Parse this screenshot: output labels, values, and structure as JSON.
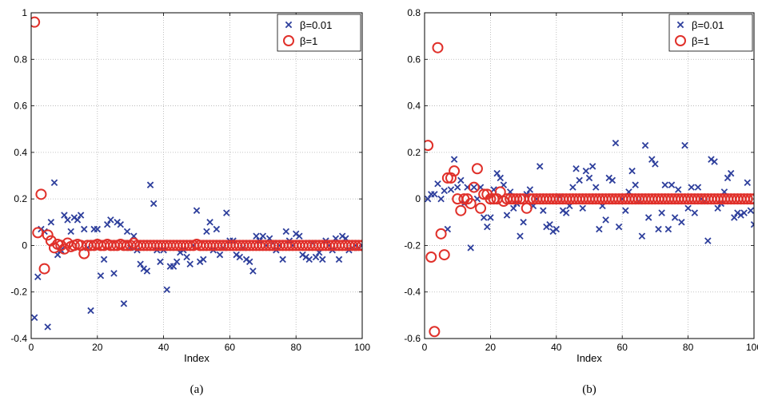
{
  "chart_data": [
    {
      "type": "scatter",
      "caption": "(a)",
      "xlabel": "Index",
      "ylabel": "",
      "xlim": [
        0,
        100
      ],
      "ylim": [
        -0.4,
        1.0
      ],
      "xticks": [
        0,
        20,
        40,
        60,
        80,
        100
      ],
      "yticks": [
        -0.4,
        -0.2,
        0,
        0.2,
        0.4,
        0.6,
        0.8,
        1
      ],
      "ytick_labels": [
        "-0.4",
        "-0.2",
        "0",
        "0.2",
        "0.4",
        "0.6",
        "0.8",
        "1"
      ],
      "grid": true,
      "legend_position": "top-right",
      "series": [
        {
          "name": "β=0.01",
          "marker": "x",
          "color": "#2e3f9c",
          "x": [
            1,
            2,
            3,
            4,
            5,
            6,
            7,
            8,
            9,
            10,
            11,
            12,
            13,
            14,
            15,
            16,
            17,
            18,
            19,
            20,
            21,
            22,
            23,
            24,
            25,
            26,
            27,
            28,
            29,
            30,
            31,
            32,
            33,
            34,
            35,
            36,
            37,
            38,
            39,
            40,
            41,
            42,
            43,
            44,
            45,
            46,
            47,
            48,
            49,
            50,
            51,
            52,
            53,
            54,
            55,
            56,
            57,
            58,
            59,
            60,
            61,
            62,
            63,
            64,
            65,
            66,
            67,
            68,
            69,
            70,
            71,
            72,
            73,
            74,
            75,
            76,
            77,
            78,
            79,
            80,
            81,
            82,
            83,
            84,
            85,
            86,
            87,
            88,
            89,
            90,
            91,
            92,
            93,
            94,
            95,
            96,
            97,
            98,
            99,
            100
          ],
          "y": [
            -0.31,
            -0.135,
            0.07,
            0.06,
            -0.35,
            0.1,
            0.27,
            -0.04,
            -0.02,
            0.13,
            0.11,
            0.06,
            0.12,
            0.11,
            0.13,
            0.07,
            -0.01,
            -0.28,
            0.07,
            0.07,
            -0.13,
            -0.06,
            0.09,
            0.11,
            -0.12,
            0.1,
            0.09,
            -0.25,
            0.06,
            -0.01,
            0.04,
            -0.02,
            -0.08,
            -0.1,
            -0.11,
            0.26,
            0.18,
            -0.02,
            -0.07,
            -0.02,
            -0.19,
            -0.09,
            -0.09,
            -0.07,
            -0.03,
            -0.02,
            -0.05,
            -0.08,
            0.0,
            0.15,
            -0.07,
            -0.06,
            0.06,
            0.1,
            -0.02,
            0.07,
            -0.04,
            -0.01,
            0.14,
            0.02,
            0.02,
            -0.04,
            -0.05,
            -0.01,
            -0.06,
            -0.07,
            -0.11,
            0.04,
            0.02,
            0.04,
            0.0,
            0.03,
            0.01,
            -0.02,
            0.0,
            -0.06,
            0.06,
            0.02,
            0.0,
            0.05,
            0.04,
            -0.04,
            -0.05,
            -0.06,
            0.01,
            -0.05,
            -0.03,
            -0.06,
            0.02,
            0.0,
            -0.02,
            0.03,
            -0.06,
            0.04,
            0.03,
            -0.02,
            -0.01,
            0.0,
            -0.01,
            0.0
          ]
        },
        {
          "name": "β=1",
          "marker": "o",
          "color": "#e0302a",
          "x": [
            1,
            2,
            3,
            4,
            5,
            6,
            7,
            8,
            9,
            10,
            11,
            12,
            13,
            14,
            15,
            16,
            17,
            18,
            19,
            20,
            21,
            22,
            23,
            24,
            25,
            26,
            27,
            28,
            29,
            30,
            31,
            32,
            33,
            34,
            35,
            36,
            37,
            38,
            39,
            40,
            41,
            42,
            43,
            44,
            45,
            46,
            47,
            48,
            49,
            50,
            51,
            52,
            53,
            54,
            55,
            56,
            57,
            58,
            59,
            60,
            61,
            62,
            63,
            64,
            65,
            66,
            67,
            68,
            69,
            70,
            71,
            72,
            73,
            74,
            75,
            76,
            77,
            78,
            79,
            80,
            81,
            82,
            83,
            84,
            85,
            86,
            87,
            88,
            89,
            90,
            91,
            92,
            93,
            94,
            95,
            96,
            97,
            98,
            99,
            100
          ],
          "y": [
            0.96,
            0.055,
            0.22,
            -0.1,
            0.045,
            0.02,
            -0.01,
            0.005,
            0.0,
            -0.015,
            0.01,
            -0.005,
            0.0,
            0.005,
            0.0,
            -0.035,
            0.0,
            0.0,
            0.0,
            0.005,
            0.0,
            0.0,
            0.005,
            0.0,
            0.0,
            0.0,
            0.005,
            0.0,
            0.0,
            0.0,
            0.01,
            0.0,
            0.0,
            0.0,
            0.0,
            0.0,
            0.0,
            0.0,
            0.0,
            0.0,
            0.0,
            0.0,
            0.0,
            0.0,
            0.0,
            0.0,
            0.0,
            0.0,
            0.0,
            0.005,
            0.0,
            0.0,
            0.0,
            0.0,
            0.0,
            0.0,
            0.0,
            0.0,
            0.0,
            0.0,
            0.0,
            0.0,
            0.0,
            0.0,
            0.0,
            0.0,
            0.0,
            0.0,
            0.0,
            0.0,
            0.0,
            0.0,
            0.0,
            0.0,
            0.0,
            0.0,
            0.0,
            0.0,
            0.0,
            0.0,
            0.0,
            0.0,
            0.0,
            0.0,
            0.0,
            0.0,
            0.0,
            0.0,
            0.0,
            0.0,
            0.0,
            0.0,
            0.0,
            0.0,
            0.0,
            0.0,
            0.0,
            0.0,
            0.0,
            0.0
          ]
        }
      ]
    },
    {
      "type": "scatter",
      "caption": "(b)",
      "xlabel": "Index",
      "ylabel": "",
      "xlim": [
        0,
        100
      ],
      "ylim": [
        -0.6,
        0.8
      ],
      "xticks": [
        0,
        20,
        40,
        60,
        80,
        100
      ],
      "yticks": [
        -0.6,
        -0.4,
        -0.2,
        0,
        0.2,
        0.4,
        0.6,
        0.8
      ],
      "ytick_labels": [
        "-0.6",
        "-0.4",
        "-0.2",
        "0",
        "0.2",
        "0.4",
        "0.6",
        "0.8"
      ],
      "grid": true,
      "legend_position": "top-right",
      "series": [
        {
          "name": "β=0.01",
          "marker": "x",
          "color": "#2e3f9c",
          "x": [
            1,
            2,
            3,
            4,
            5,
            6,
            7,
            8,
            9,
            10,
            11,
            12,
            13,
            14,
            15,
            16,
            17,
            18,
            19,
            20,
            21,
            22,
            23,
            24,
            25,
            26,
            27,
            28,
            29,
            30,
            31,
            32,
            33,
            34,
            35,
            36,
            37,
            38,
            39,
            40,
            41,
            42,
            43,
            44,
            45,
            46,
            47,
            48,
            49,
            50,
            51,
            52,
            53,
            54,
            55,
            56,
            57,
            58,
            59,
            60,
            61,
            62,
            63,
            64,
            65,
            66,
            67,
            68,
            69,
            70,
            71,
            72,
            73,
            74,
            75,
            76,
            77,
            78,
            79,
            80,
            81,
            82,
            83,
            84,
            85,
            86,
            87,
            88,
            89,
            90,
            91,
            92,
            93,
            94,
            95,
            96,
            97,
            98,
            99,
            100
          ],
          "y": [
            0.0,
            0.02,
            0.02,
            0.065,
            0.0,
            0.035,
            -0.13,
            0.04,
            0.17,
            0.05,
            0.08,
            -0.02,
            0.05,
            -0.21,
            0.05,
            0.0,
            0.05,
            -0.08,
            -0.12,
            -0.08,
            0.04,
            0.11,
            0.09,
            0.06,
            -0.07,
            0.03,
            -0.04,
            -0.02,
            -0.16,
            -0.1,
            0.02,
            0.04,
            -0.03,
            0.0,
            0.14,
            -0.05,
            -0.12,
            -0.11,
            -0.14,
            -0.13,
            0.01,
            -0.05,
            -0.06,
            -0.03,
            0.05,
            0.13,
            0.08,
            -0.04,
            0.12,
            0.09,
            0.14,
            0.05,
            -0.13,
            -0.03,
            -0.09,
            0.09,
            0.08,
            0.24,
            -0.12,
            0.0,
            -0.05,
            0.03,
            0.12,
            0.06,
            -0.01,
            -0.16,
            0.23,
            -0.08,
            0.17,
            0.15,
            -0.13,
            -0.06,
            0.06,
            -0.13,
            0.06,
            -0.08,
            0.04,
            -0.1,
            0.23,
            -0.04,
            0.05,
            -0.06,
            0.05,
            0.0,
            -0.01,
            -0.18,
            0.17,
            0.16,
            -0.04,
            -0.02,
            0.03,
            0.09,
            0.11,
            -0.08,
            -0.06,
            -0.07,
            -0.06,
            0.07,
            -0.05,
            -0.11
          ]
        },
        {
          "name": "β=1",
          "marker": "o",
          "color": "#e0302a",
          "x": [
            1,
            2,
            3,
            4,
            5,
            6,
            7,
            8,
            9,
            10,
            11,
            12,
            13,
            14,
            15,
            16,
            17,
            18,
            19,
            20,
            21,
            22,
            23,
            24,
            25,
            26,
            27,
            28,
            29,
            30,
            31,
            32,
            33,
            34,
            35,
            36,
            37,
            38,
            39,
            40,
            41,
            42,
            43,
            44,
            45,
            46,
            47,
            48,
            49,
            50,
            51,
            52,
            53,
            54,
            55,
            56,
            57,
            58,
            59,
            60,
            61,
            62,
            63,
            64,
            65,
            66,
            67,
            68,
            69,
            70,
            71,
            72,
            73,
            74,
            75,
            76,
            77,
            78,
            79,
            80,
            81,
            82,
            83,
            84,
            85,
            86,
            87,
            88,
            89,
            90,
            91,
            92,
            93,
            94,
            95,
            96,
            97,
            98,
            99,
            100
          ],
          "y": [
            0.23,
            -0.25,
            -0.57,
            0.65,
            -0.15,
            -0.24,
            0.09,
            0.09,
            0.12,
            0.0,
            -0.05,
            0.0,
            0.0,
            -0.02,
            0.05,
            0.13,
            -0.04,
            0.02,
            0.02,
            0.0,
            0.0,
            0.0,
            0.03,
            -0.01,
            0.0,
            0.0,
            0.0,
            0.0,
            0.0,
            0.0,
            -0.04,
            0.0,
            0.0,
            0.0,
            0.0,
            0.0,
            0.0,
            0.0,
            0.0,
            0.0,
            0.0,
            0.0,
            0.0,
            0.0,
            0.0,
            0.0,
            0.0,
            0.0,
            0.0,
            0.0,
            0.0,
            0.0,
            0.0,
            0.0,
            0.0,
            0.0,
            0.0,
            0.0,
            0.0,
            0.0,
            0.0,
            0.0,
            0.0,
            0.0,
            0.0,
            0.0,
            0.0,
            0.0,
            0.0,
            0.0,
            0.0,
            0.0,
            0.0,
            0.0,
            0.0,
            0.0,
            0.0,
            0.0,
            0.0,
            0.0,
            0.0,
            0.0,
            0.0,
            0.0,
            0.0,
            0.0,
            0.0,
            0.0,
            0.0,
            0.0,
            0.0,
            0.0,
            0.0,
            0.0,
            0.0,
            0.0,
            0.0,
            0.0,
            0.0,
            0.0
          ]
        }
      ]
    }
  ]
}
